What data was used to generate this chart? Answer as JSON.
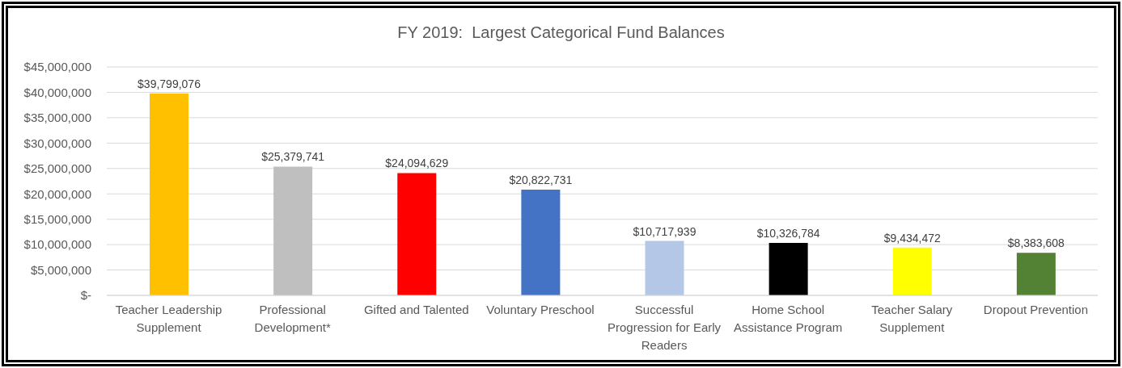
{
  "chart_data": {
    "type": "bar",
    "title": "FY 2019:  Largest Categorical Fund Balances",
    "categories": [
      "Teacher Leadership Supplement",
      "Professional Development*",
      "Gifted and Talented",
      "Voluntary Preschool",
      "Successful Progression for Early Readers",
      "Home School Assistance Program",
      "Teacher Salary Supplement",
      "Dropout Prevention"
    ],
    "values": [
      39799076,
      25379741,
      24094629,
      20822731,
      10717939,
      10326784,
      9434472,
      8383608
    ],
    "colors": [
      "#ffc000",
      "#bfbfbf",
      "#ff0000",
      "#4472c4",
      "#b4c7e7",
      "#000000",
      "#ffff00",
      "#548235"
    ],
    "value_labels": [
      "$39,799,076",
      "$25,379,741",
      "$24,094,629",
      "$20,822,731",
      "$10,717,939",
      "$10,326,784",
      "$9,434,472",
      "$8,383,608"
    ],
    "ylim": [
      0,
      45000000
    ],
    "yticks": [
      {
        "value": 0,
        "label": "$-"
      },
      {
        "value": 5000000,
        "label": "$5,000,000"
      },
      {
        "value": 10000000,
        "label": "$10,000,000"
      },
      {
        "value": 15000000,
        "label": "$15,000,000"
      },
      {
        "value": 20000000,
        "label": "$20,000,000"
      },
      {
        "value": 25000000,
        "label": "$25,000,000"
      },
      {
        "value": 30000000,
        "label": "$30,000,000"
      },
      {
        "value": 35000000,
        "label": "$35,000,000"
      },
      {
        "value": 40000000,
        "label": "$40,000,000"
      },
      {
        "value": 45000000,
        "label": "$45,000,000"
      }
    ],
    "grid": "y"
  }
}
